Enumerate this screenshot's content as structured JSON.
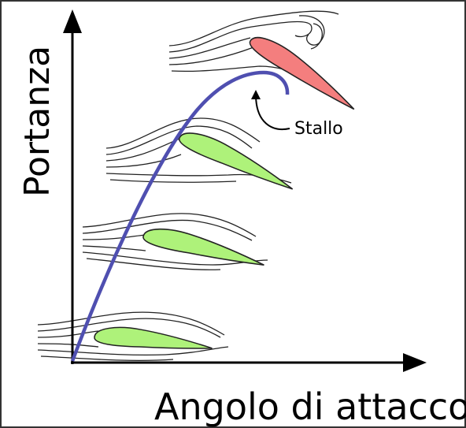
{
  "axes": {
    "y_label": "Portanza",
    "x_label": "Angolo di attacco"
  },
  "annotation": "Stallo"
}
